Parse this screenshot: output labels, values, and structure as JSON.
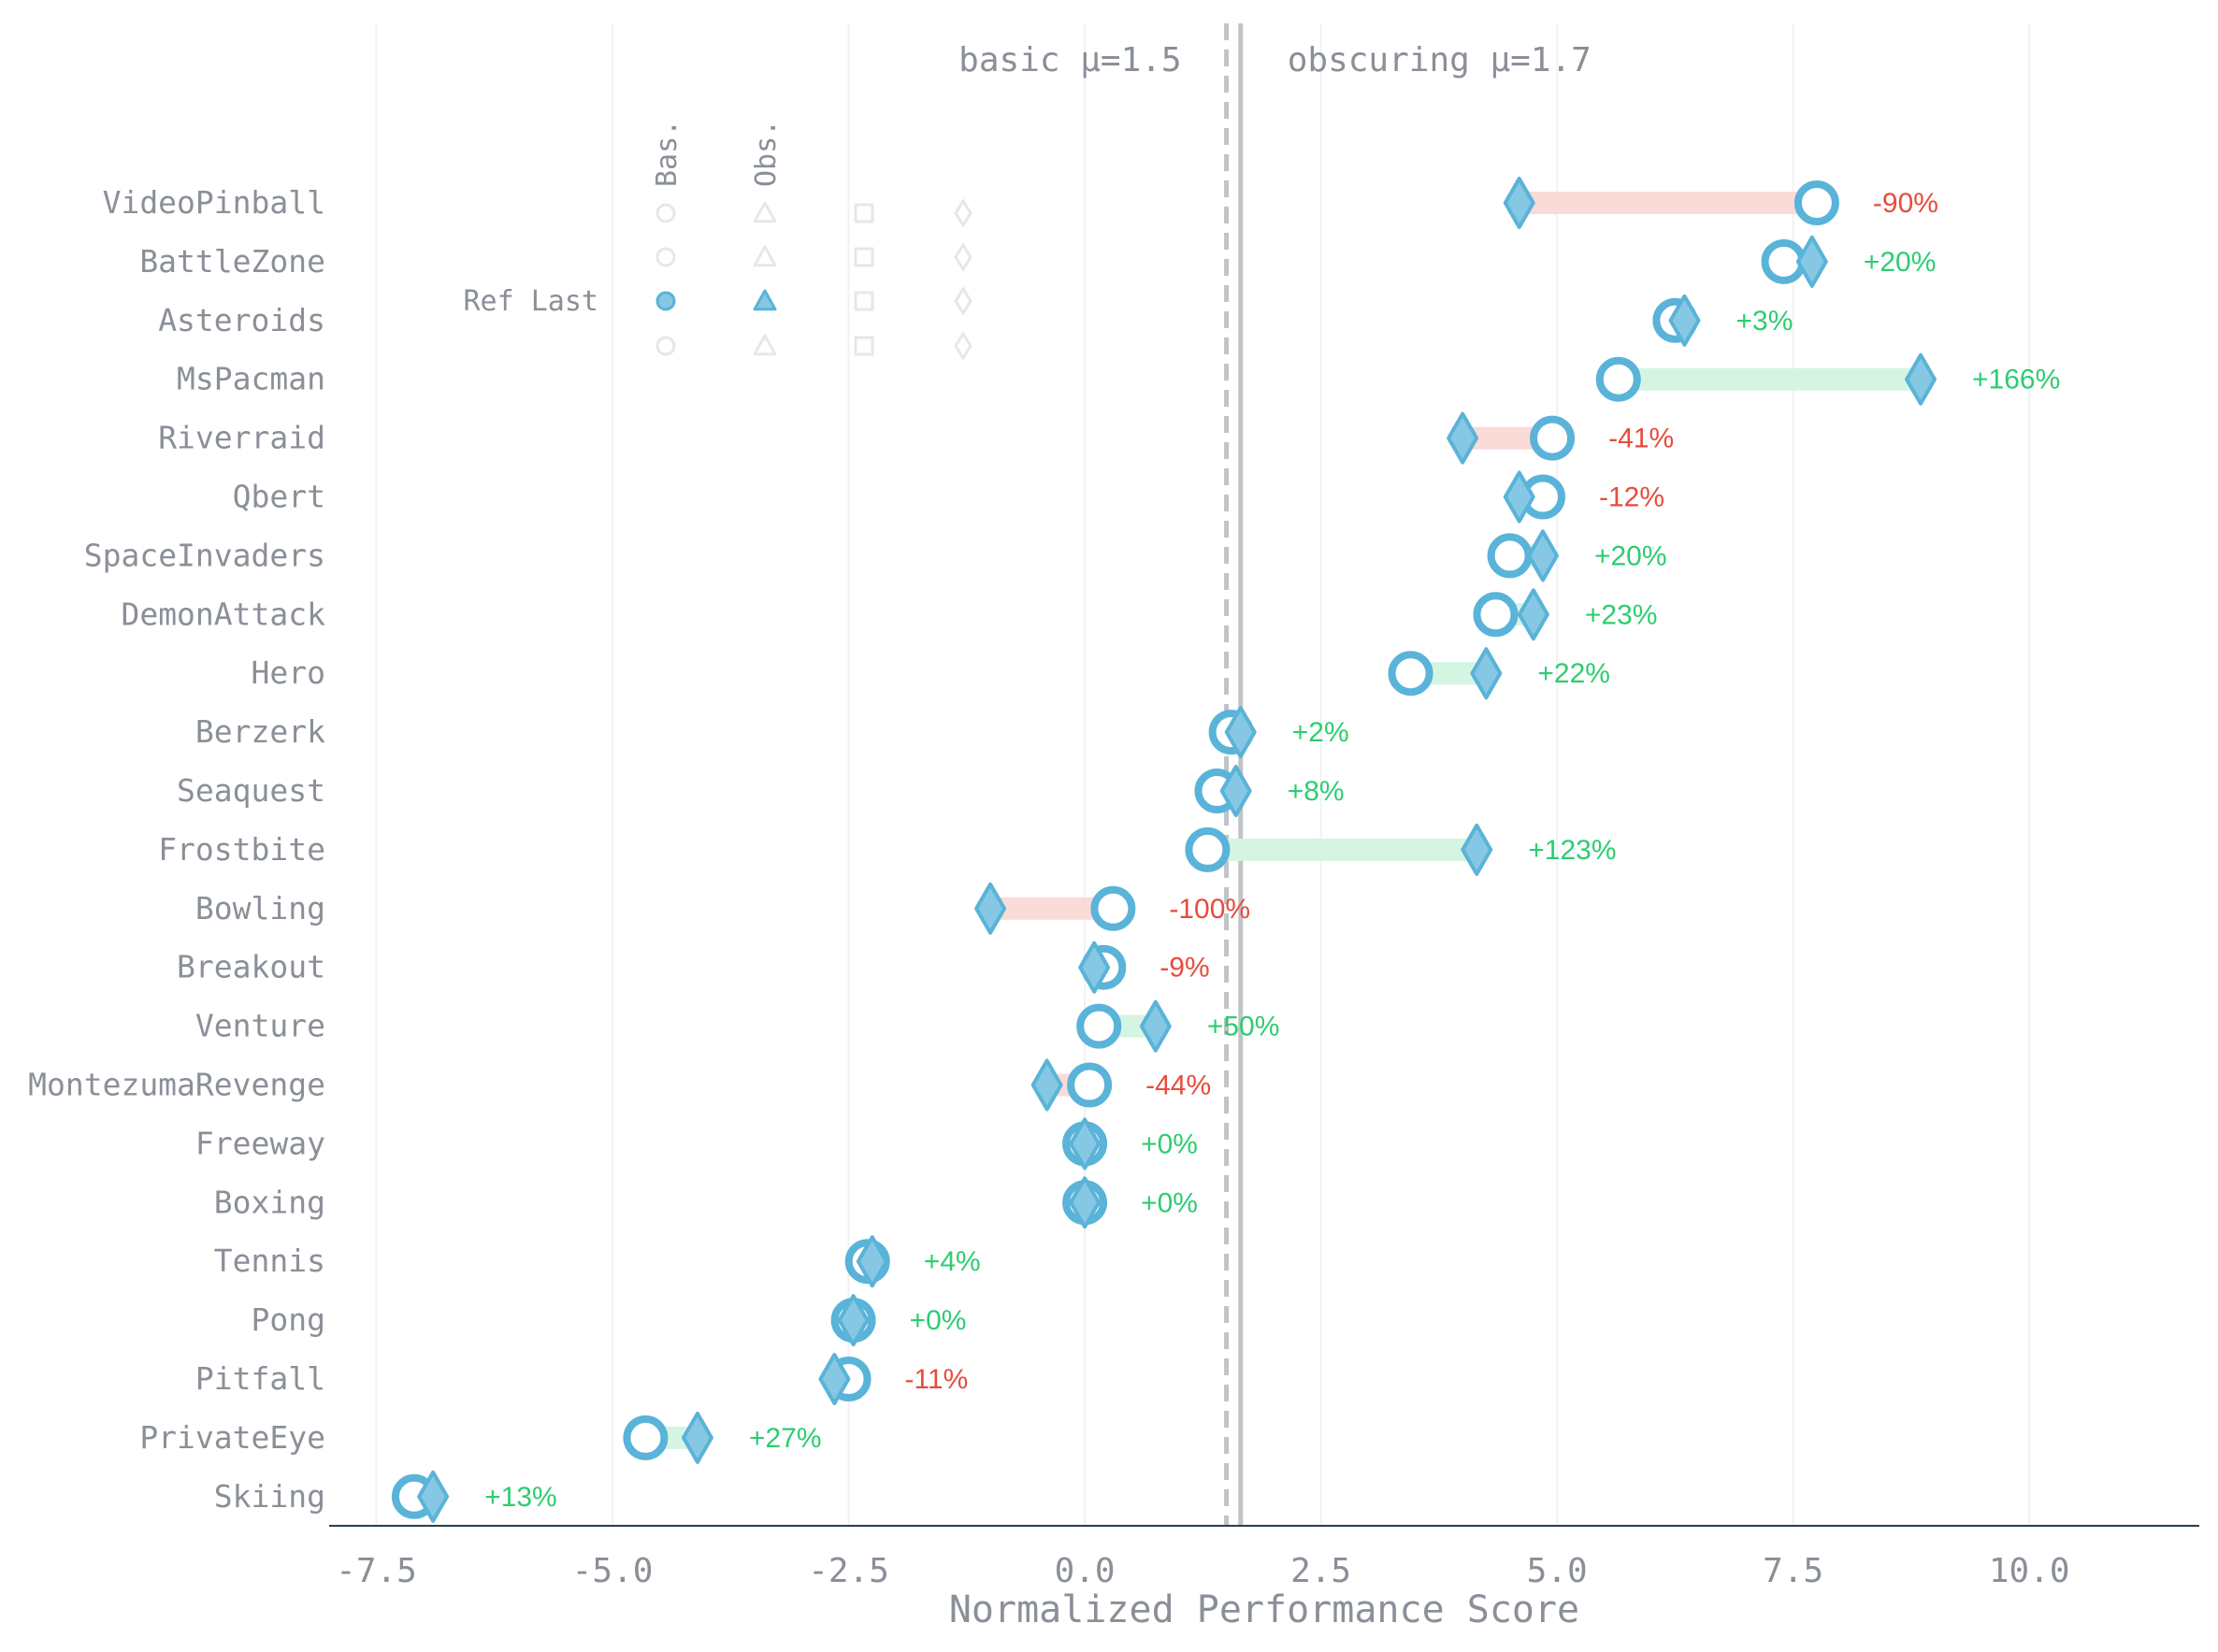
{
  "chart_data": {
    "type": "dumbbell",
    "xlabel": "Normalized Performance Score",
    "xlim": [
      -8.0,
      11.8
    ],
    "xticks": [
      -7.5,
      -5.0,
      -2.5,
      0.0,
      2.5,
      5.0,
      7.5,
      10.0
    ],
    "xtick_labels": [
      "-7.5",
      "-5.0",
      "-2.5",
      "0.0",
      "2.5",
      "5.0",
      "7.5",
      "10.0"
    ],
    "grid": "vertical",
    "means": [
      {
        "label": "basic μ=1.5",
        "value": 1.5,
        "style": "dashed"
      },
      {
        "label": "obscuring μ=1.7",
        "value": 1.65,
        "style": "solid"
      }
    ],
    "legend": {
      "columns": [
        "Bas.",
        "Obs."
      ],
      "row_label": "Ref Last",
      "placement": "top-left"
    },
    "games": [
      {
        "name": "VideoPinball",
        "basic": 7.75,
        "obscuring": 4.6,
        "change": "-90%"
      },
      {
        "name": "BattleZone",
        "basic": 7.4,
        "obscuring": 7.7,
        "change": "+20%"
      },
      {
        "name": "Asteroids",
        "basic": 6.25,
        "obscuring": 6.35,
        "change": "+3%"
      },
      {
        "name": "MsPacman",
        "basic": 5.65,
        "obscuring": 8.85,
        "change": "+166%"
      },
      {
        "name": "Riverraid",
        "basic": 4.95,
        "obscuring": 4.0,
        "change": "-41%"
      },
      {
        "name": "Qbert",
        "basic": 4.85,
        "obscuring": 4.6,
        "change": "-12%"
      },
      {
        "name": "SpaceInvaders",
        "basic": 4.5,
        "obscuring": 4.85,
        "change": "+20%"
      },
      {
        "name": "DemonAttack",
        "basic": 4.35,
        "obscuring": 4.75,
        "change": "+23%"
      },
      {
        "name": "Hero",
        "basic": 3.45,
        "obscuring": 4.25,
        "change": "+22%"
      },
      {
        "name": "Berzerk",
        "basic": 1.55,
        "obscuring": 1.65,
        "change": "+2%"
      },
      {
        "name": "Seaquest",
        "basic": 1.4,
        "obscuring": 1.6,
        "change": "+8%"
      },
      {
        "name": "Frostbite",
        "basic": 1.3,
        "obscuring": 4.15,
        "change": "+123%"
      },
      {
        "name": "Bowling",
        "basic": 0.3,
        "obscuring": -1.0,
        "change": "-100%"
      },
      {
        "name": "Breakout",
        "basic": 0.2,
        "obscuring": 0.1,
        "change": "-9%"
      },
      {
        "name": "Venture",
        "basic": 0.15,
        "obscuring": 0.75,
        "change": "+50%"
      },
      {
        "name": "MontezumaRevenge",
        "basic": 0.05,
        "obscuring": -0.4,
        "change": "-44%"
      },
      {
        "name": "Freeway",
        "basic": 0.0,
        "obscuring": 0.0,
        "change": "+0%"
      },
      {
        "name": "Boxing",
        "basic": 0.0,
        "obscuring": 0.0,
        "change": "+0%"
      },
      {
        "name": "Tennis",
        "basic": -2.3,
        "obscuring": -2.25,
        "change": "+4%"
      },
      {
        "name": "Pong",
        "basic": -2.45,
        "obscuring": -2.45,
        "change": "+0%"
      },
      {
        "name": "Pitfall",
        "basic": -2.5,
        "obscuring": -2.65,
        "change": "-11%"
      },
      {
        "name": "PrivateEye",
        "basic": -4.65,
        "obscuring": -4.1,
        "change": "+27%"
      },
      {
        "name": "Skiing",
        "basic": -7.1,
        "obscuring": -6.9,
        "change": "+13%"
      }
    ],
    "colors": {
      "marker": "#5ab3d8",
      "marker_fill": "#86c8e4",
      "increase": "#2ecc71",
      "decrease": "#e74c3c",
      "increase_bar": "#d5f5e3",
      "decrease_bar": "#fadbd8",
      "mean_line": "#c0c3c7",
      "grid": "#f1f2f3",
      "axis": "#2c3e50",
      "text": "#8a8f98"
    }
  }
}
